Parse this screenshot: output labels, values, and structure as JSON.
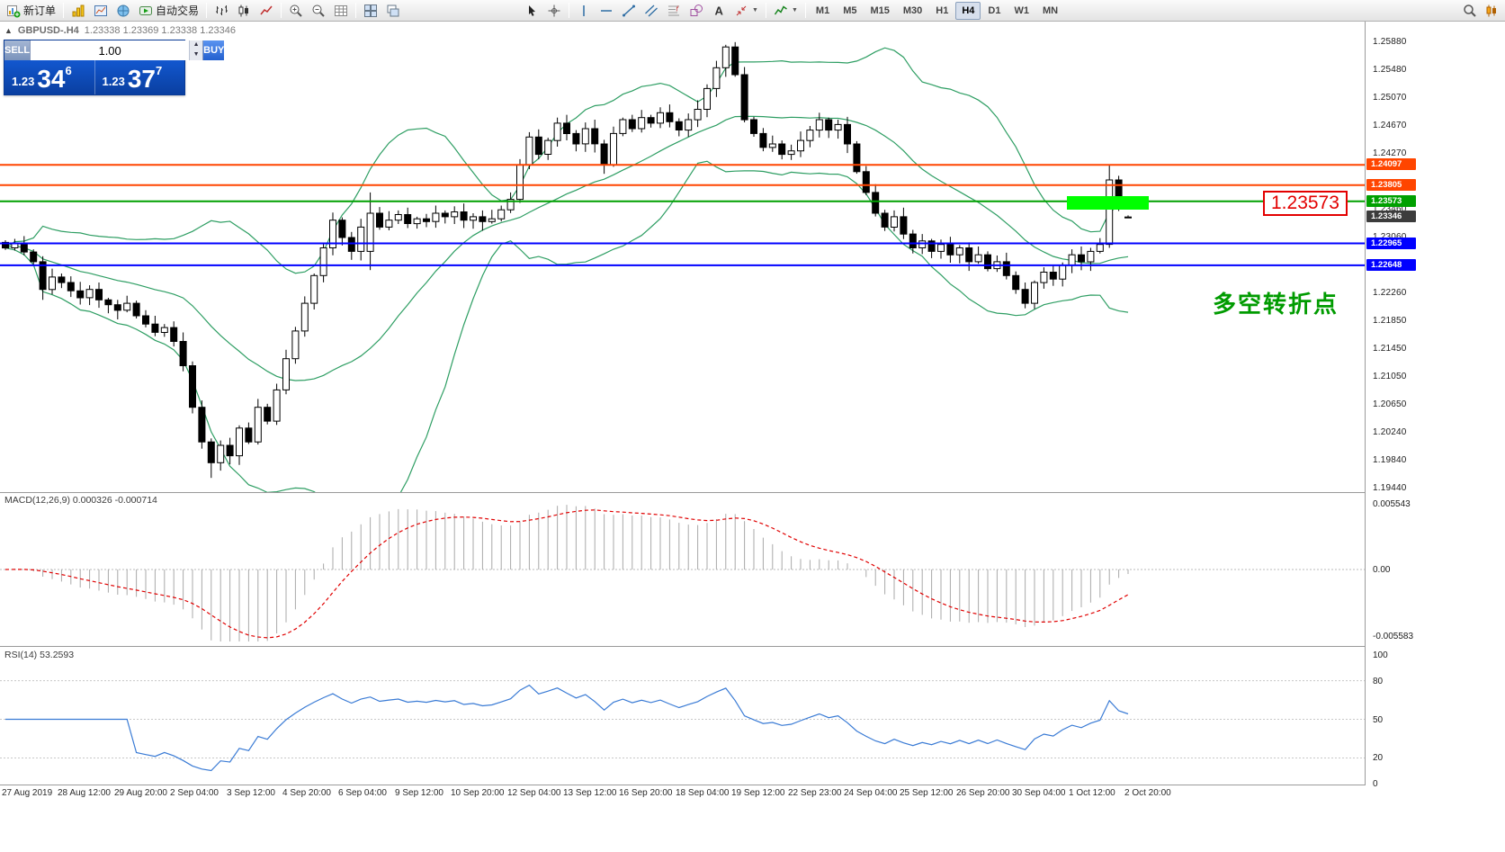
{
  "toolbar": {
    "new_order": "新订单",
    "auto_trading": "自动交易",
    "timeframes": [
      "M1",
      "M5",
      "M15",
      "M30",
      "H1",
      "H4",
      "D1",
      "W1",
      "MN"
    ],
    "active_timeframe": "H4"
  },
  "chart_header": {
    "symbol": "GBPUSD-.H4",
    "collapse_glyph": "▲",
    "ohlc": "1.23338 1.23369 1.23338 1.23346"
  },
  "one_click": {
    "sell_label": "SELL",
    "buy_label": "BUY",
    "volume": "1.00",
    "spin_up": "▲",
    "spin_down": "▼",
    "sell_price_small": "1.23",
    "sell_price_big": "34",
    "sell_price_sup": "6",
    "buy_price_small": "1.23",
    "buy_price_big": "37",
    "buy_price_sup": "7"
  },
  "annotations": {
    "price_callout": "1.23573",
    "cn_note": "多空转折点",
    "highlight_color": "#00ff00",
    "callout_color": "#e30000",
    "note_color": "#009b00"
  },
  "indicators": {
    "macd_label": "MACD(12,26,9)",
    "macd_values": "0.000326 -0.000714",
    "rsi_label": "RSI(14)",
    "rsi_values": "53.2593",
    "macd_ticks": [
      [
        "0.005543",
        0.005543
      ],
      [
        "0.00",
        0
      ],
      [
        "-0.005583",
        -0.005583
      ]
    ],
    "rsi_ticks": [
      100,
      80,
      50,
      20,
      0
    ]
  },
  "chart_data": {
    "type": "candlestick",
    "symbol": "GBPUSD",
    "timeframe": "H4",
    "bollinger": {
      "period": 20,
      "deviation": 2
    },
    "bollinger_color": "#2e9e63",
    "rsi_color": "#3a7bd5",
    "macd_signal_color": "#e00000",
    "macd_hist_color": "#a9a9a9",
    "price_ticks": [
      1.2588,
      1.2548,
      1.2507,
      1.2467,
      1.2427,
      1.2346,
      1.2306,
      1.2226,
      1.2185,
      1.2145,
      1.2105,
      1.2065,
      1.2024,
      1.1984,
      1.1944
    ],
    "levels": [
      {
        "price": 1.24097,
        "color": "#ff4500"
      },
      {
        "price": 1.23805,
        "color": "#ff4500"
      },
      {
        "price": 1.23573,
        "color": "#00a000"
      },
      {
        "price": 1.23346,
        "color": "#3c3c3c",
        "line": false
      },
      {
        "price": 1.22965,
        "color": "#0000ff"
      },
      {
        "price": 1.22648,
        "color": "#0000ff"
      }
    ],
    "dates": [
      "27 Aug 2019",
      "28 Aug 12:00",
      "29 Aug 20:00",
      "2 Sep 04:00",
      "3 Sep 12:00",
      "4 Sep 20:00",
      "6 Sep 04:00",
      "9 Sep 12:00",
      "10 Sep 20:00",
      "12 Sep 04:00",
      "13 Sep 12:00",
      "16 Sep 20:00",
      "18 Sep 04:00",
      "19 Sep 12:00",
      "22 Sep 23:00",
      "24 Sep 04:00",
      "25 Sep 12:00",
      "26 Sep 20:00",
      "30 Sep 04:00",
      "1 Oct 12:00",
      "2 Oct 20:00"
    ],
    "candles": {
      "closes": [
        1.229,
        1.2296,
        1.2284,
        1.227,
        1.223,
        1.2248,
        1.224,
        1.2228,
        1.2218,
        1.223,
        1.2215,
        1.2208,
        1.22,
        1.221,
        1.2192,
        1.218,
        1.2168,
        1.2175,
        1.2155,
        1.212,
        1.206,
        1.201,
        1.198,
        1.2005,
        1.199,
        1.203,
        1.201,
        1.206,
        1.204,
        1.2085,
        1.213,
        1.217,
        1.221,
        1.225,
        1.229,
        1.233,
        1.2305,
        1.2285,
        1.232,
        1.234,
        1.232,
        1.233,
        1.2338,
        1.2325,
        1.2332,
        1.2328,
        1.234,
        1.2335,
        1.2342,
        1.233,
        1.2335,
        1.2328,
        1.2332,
        1.2345,
        1.236,
        1.241,
        1.245,
        1.2425,
        1.2445,
        1.247,
        1.2455,
        1.244,
        1.2462,
        1.244,
        1.241,
        1.2455,
        1.2475,
        1.2462,
        1.2478,
        1.247,
        1.2485,
        1.2472,
        1.246,
        1.2475,
        1.249,
        1.252,
        1.255,
        1.258,
        1.254,
        1.2475,
        1.2455,
        1.2435,
        1.244,
        1.2425,
        1.243,
        1.2445,
        1.246,
        1.2475,
        1.246,
        1.2468,
        1.244,
        1.24,
        1.237,
        1.234,
        1.232,
        1.2335,
        1.231,
        1.229,
        1.23,
        1.2285,
        1.2295,
        1.228,
        1.229,
        1.227,
        1.228,
        1.226,
        1.227,
        1.225,
        1.223,
        1.221,
        1.224,
        1.2255,
        1.2245,
        1.2265,
        1.228,
        1.227,
        1.2285,
        1.2295,
        1.2388,
        1.2348,
        1.23346
      ],
      "overrides": {
        "4": [
          1.227,
          1.2278,
          1.2215,
          1.223
        ],
        "22": [
          1.201,
          1.2015,
          1.1958,
          1.198
        ],
        "39": [
          1.2285,
          1.237,
          1.2258,
          1.234
        ],
        "55": [
          1.236,
          1.2418,
          1.2355,
          1.241
        ],
        "118": [
          1.2295,
          1.241,
          1.229,
          1.2388
        ],
        "120": [
          1.23338,
          1.23369,
          1.23338,
          1.23346
        ]
      }
    }
  }
}
